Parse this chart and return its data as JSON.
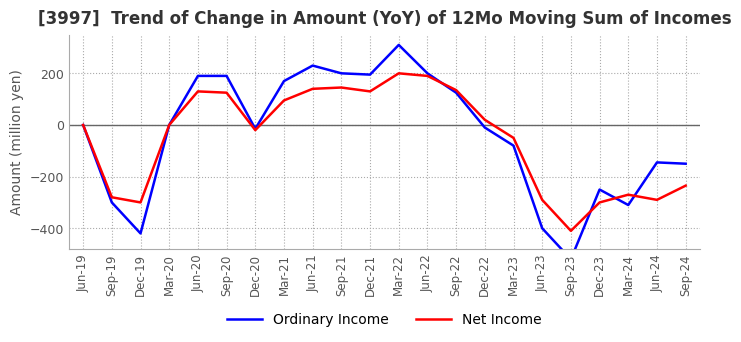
{
  "title": "[3997]  Trend of Change in Amount (YoY) of 12Mo Moving Sum of Incomes",
  "ylabel": "Amount (million yen)",
  "x_labels": [
    "Jun-19",
    "Sep-19",
    "Dec-19",
    "Mar-20",
    "Jun-20",
    "Sep-20",
    "Dec-20",
    "Mar-21",
    "Jun-21",
    "Sep-21",
    "Dec-21",
    "Mar-22",
    "Jun-22",
    "Sep-22",
    "Dec-22",
    "Mar-23",
    "Jun-23",
    "Sep-23",
    "Dec-23",
    "Mar-24",
    "Jun-24",
    "Sep-24"
  ],
  "ordinary_income": [
    0,
    -300,
    -420,
    0,
    190,
    190,
    -15,
    170,
    230,
    200,
    195,
    310,
    200,
    125,
    -10,
    -80,
    -400,
    -520,
    -250,
    -310,
    -145,
    -150
  ],
  "net_income": [
    0,
    -280,
    -300,
    0,
    130,
    125,
    -20,
    95,
    140,
    145,
    130,
    200,
    190,
    135,
    20,
    -50,
    -290,
    -410,
    -300,
    -270,
    -290,
    -235
  ],
  "ordinary_color": "#0000ff",
  "net_color": "#ff0000",
  "ylim": [
    -480,
    350
  ],
  "yticks": [
    -400,
    -200,
    0,
    200
  ],
  "grid_color": "#aaaaaa",
  "background_color": "#ffffff",
  "title_fontsize": 12,
  "axis_fontsize": 10,
  "zero_line_color": "#666666"
}
